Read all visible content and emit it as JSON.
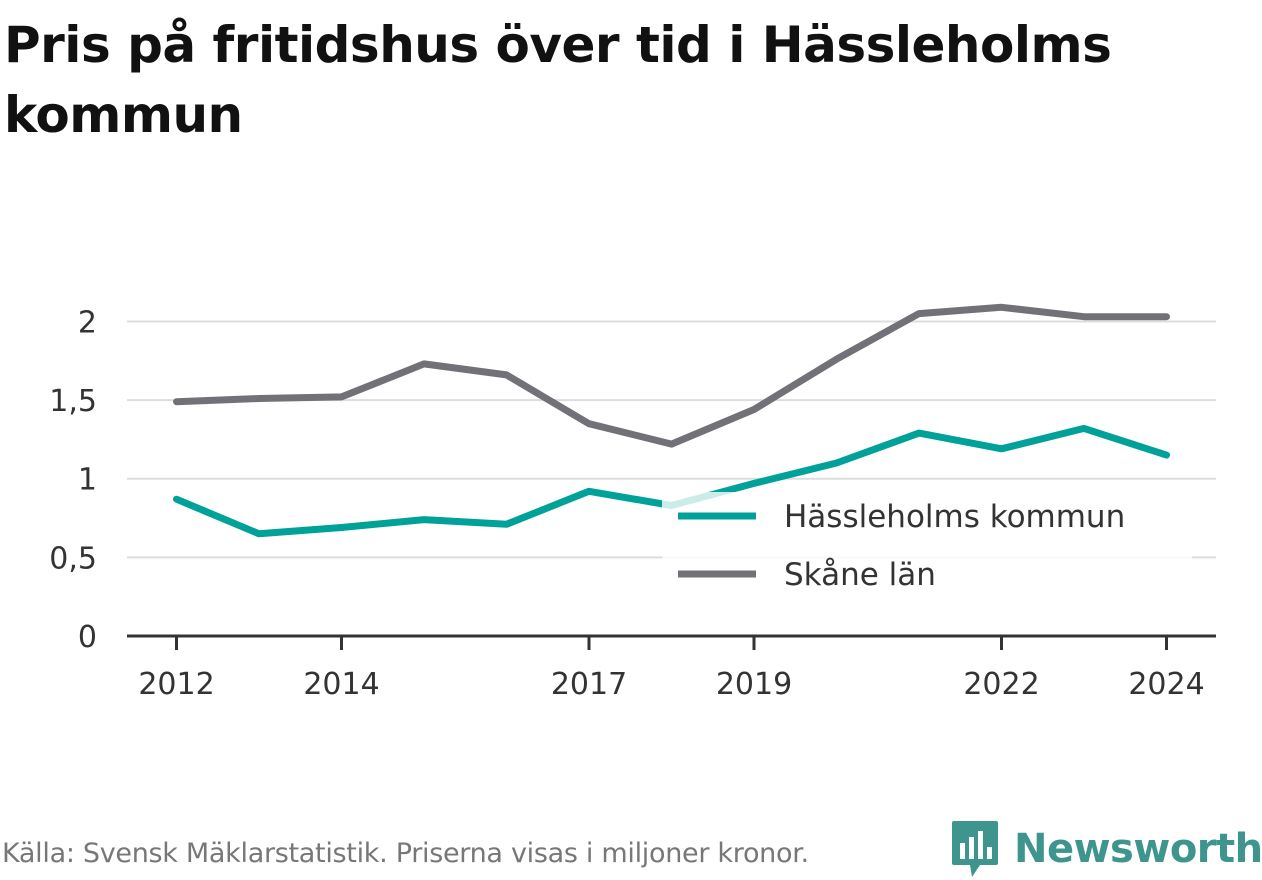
{
  "chart_data": {
    "type": "line",
    "title": "Pris på fritidshus över tid i Hässleholms kommun",
    "xlabel": "",
    "ylabel": "",
    "x": [
      2012,
      2013,
      2014,
      2015,
      2016,
      2017,
      2018,
      2019,
      2020,
      2021,
      2022,
      2023,
      2024
    ],
    "x_ticks": [
      "2012",
      "2014",
      "2017",
      "2019",
      "2022",
      "2024"
    ],
    "x_tick_values": [
      2012,
      2014,
      2017,
      2019,
      2022,
      2024
    ],
    "y_ticks": [
      "0",
      "0,5",
      "1",
      "1,5",
      "2"
    ],
    "y_tick_values": [
      0,
      0.5,
      1,
      1.5,
      2
    ],
    "ylim": [
      0,
      2.2
    ],
    "xlim": [
      2011.4,
      2024.6
    ],
    "grid": true,
    "legend_position": "center-right",
    "series": [
      {
        "name": "Hässleholms kommun",
        "color": "#00a198",
        "values": [
          0.87,
          0.65,
          0.69,
          0.74,
          0.71,
          0.92,
          0.83,
          0.97,
          1.1,
          1.29,
          1.19,
          1.32,
          1.15
        ]
      },
      {
        "name": "Skåne län",
        "color": "#727178",
        "values": [
          1.49,
          1.51,
          1.52,
          1.73,
          1.66,
          1.35,
          1.22,
          1.44,
          1.76,
          2.05,
          2.09,
          2.03,
          2.03
        ]
      }
    ]
  },
  "footer": {
    "source": "Källa: Svensk Mäklarstatistik. Priserna visas i miljoner kronor.",
    "brand": "Newsworthy",
    "brand_icon": "newsworthy-logo-icon",
    "brand_color": "#3d958d"
  }
}
